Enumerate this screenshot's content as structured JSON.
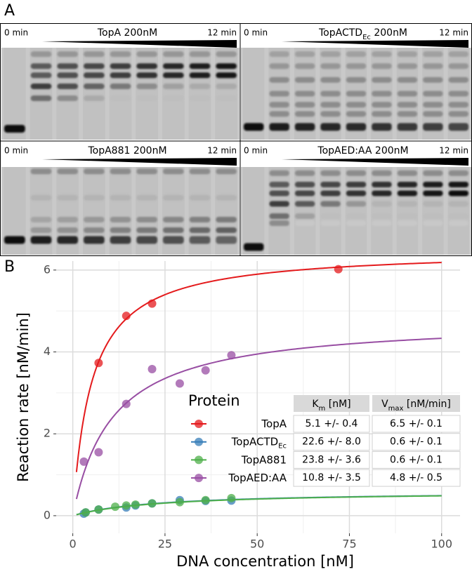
{
  "panel_a": {
    "label": "A",
    "gels": [
      {
        "start": "0 min",
        "end": "12 min",
        "title": [
          "TopA 200nM"
        ]
      },
      {
        "start": "0 min",
        "end": "12 min",
        "title": [
          "TopACTD",
          "Ec",
          " 200nM"
        ]
      },
      {
        "start": "0 min",
        "end": "12 min",
        "title": [
          "TopA881 200nM"
        ]
      },
      {
        "start": "0 min",
        "end": "12 min",
        "title": [
          "TopAED:AA 200nM"
        ]
      }
    ]
  },
  "chart_data": {
    "type": "scatter",
    "panel_label": "B",
    "x_label": "DNA concentration [nM]",
    "y_label": "Reaction rate [nM/min]",
    "xlim": [
      -4.5,
      105
    ],
    "ylim": [
      -0.43,
      6.22
    ],
    "xticks": [
      0,
      25,
      50,
      75,
      100
    ],
    "yticks": [
      0,
      2,
      4,
      6
    ],
    "grid": true,
    "legend_title": "Protein",
    "fit_x": [
      1,
      100
    ],
    "headers": [
      {
        "text": "K",
        "sub": "m",
        "rest": " [nM]"
      },
      {
        "text": "V",
        "sub": "max",
        "rest": " [nM/min]"
      }
    ],
    "series": [
      {
        "name": "TopA",
        "color": "#e41a1c",
        "x": [
          7,
          14.5,
          21.5,
          72
        ],
        "values": [
          3.73,
          4.88,
          5.18,
          6.02
        ],
        "km": {
          "value": 5.1,
          "label": "5.1 +/- 0.4"
        },
        "vmax": {
          "value": 6.5,
          "label": "6.5 +/- 0.1"
        }
      },
      {
        "name": "TopACTD",
        "name_sub": "Ec",
        "color": "#377eb8",
        "x": [
          3,
          3.5,
          7,
          14.5,
          17,
          21.5,
          29,
          36,
          43
        ],
        "values": [
          0.05,
          0.08,
          0.15,
          0.2,
          0.25,
          0.3,
          0.38,
          0.36,
          0.37
        ],
        "km": {
          "value": 22.6,
          "label": "22.6 +/- 8.0"
        },
        "vmax": {
          "value": 0.6,
          "label": "0.6 +/- 0.1"
        }
      },
      {
        "name": "TopA881",
        "color": "#4daf4a",
        "x": [
          3.5,
          7,
          11.5,
          14.5,
          17,
          21.5,
          29,
          36,
          43
        ],
        "values": [
          0.08,
          0.15,
          0.22,
          0.25,
          0.27,
          0.3,
          0.33,
          0.38,
          0.43
        ],
        "km": {
          "value": 23.8,
          "label": "23.8 +/- 3.6"
        },
        "vmax": {
          "value": 0.6,
          "label": "0.6 +/- 0.1"
        }
      },
      {
        "name": "TopAED:AA",
        "color": "#984ea3",
        "x": [
          3,
          7,
          14.5,
          21.5,
          29,
          36,
          43
        ],
        "values": [
          1.32,
          1.55,
          2.73,
          3.58,
          3.23,
          3.55,
          3.92
        ],
        "km": {
          "value": 10.8,
          "label": "10.8 +/- 3.5"
        },
        "vmax": {
          "value": 4.8,
          "label": "4.8 +/- 0.5"
        }
      }
    ]
  }
}
